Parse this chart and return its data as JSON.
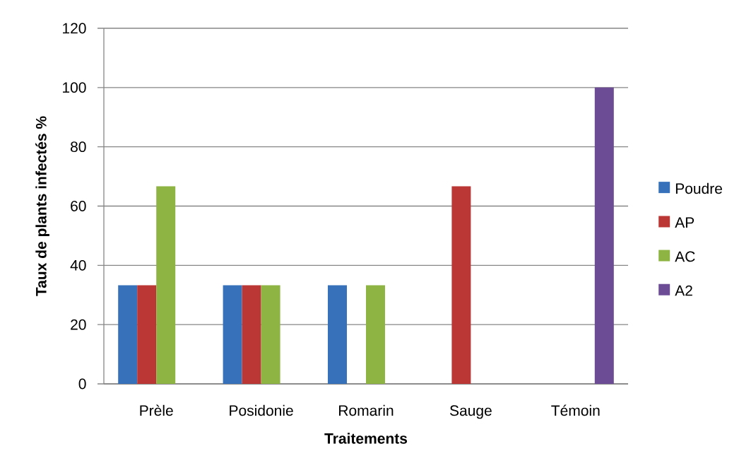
{
  "chart_data": {
    "type": "bar",
    "xlabel": "Traitements",
    "ylabel": "Taux de plants infectés %",
    "categories": [
      "Prèle",
      "Posidonie",
      "Romarin",
      "Sauge",
      "Témoin"
    ],
    "series": [
      {
        "name": "Poudre",
        "color": "#3671ba",
        "values": [
          33.3,
          33.3,
          33.3,
          0,
          0
        ]
      },
      {
        "name": "AP",
        "color": "#ba3735",
        "values": [
          33.3,
          33.3,
          0,
          66.7,
          0
        ]
      },
      {
        "name": "AC",
        "color": "#8eb443",
        "values": [
          66.7,
          33.3,
          33.3,
          0,
          0
        ]
      },
      {
        "name": "A2",
        "color": "#6c4c95",
        "values": [
          0,
          0,
          0,
          0,
          100
        ]
      }
    ],
    "ylim": [
      0,
      120
    ],
    "yticks": [
      0,
      20,
      40,
      60,
      80,
      100,
      120
    ],
    "grid": "y",
    "legend": "right"
  }
}
